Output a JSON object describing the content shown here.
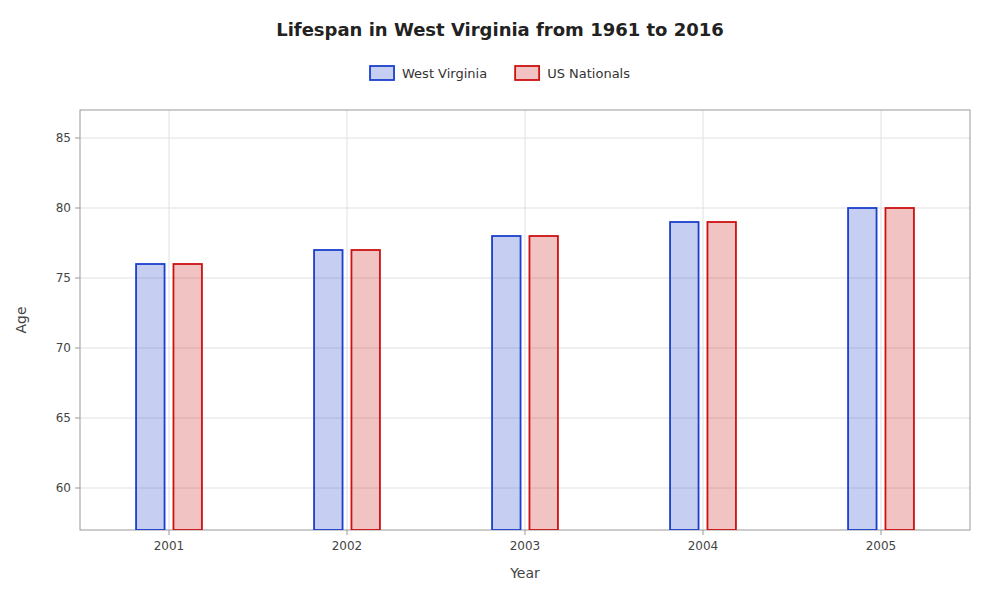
{
  "chart_data": {
    "type": "bar",
    "title": "Lifespan in West Virginia from 1961 to 2016",
    "xlabel": "Year",
    "ylabel": "Age",
    "categories": [
      "2001",
      "2002",
      "2003",
      "2004",
      "2005"
    ],
    "series": [
      {
        "name": "West Virginia",
        "color": "#1a3fcc",
        "values": [
          76,
          77,
          78,
          79,
          80
        ]
      },
      {
        "name": "US Nationals",
        "color": "#cc1111",
        "values": [
          76,
          77,
          78,
          79,
          80
        ]
      }
    ],
    "ylim": [
      57,
      87
    ],
    "yticks": [
      60,
      65,
      70,
      75,
      80,
      85
    ],
    "grid": true,
    "legend": "top"
  }
}
